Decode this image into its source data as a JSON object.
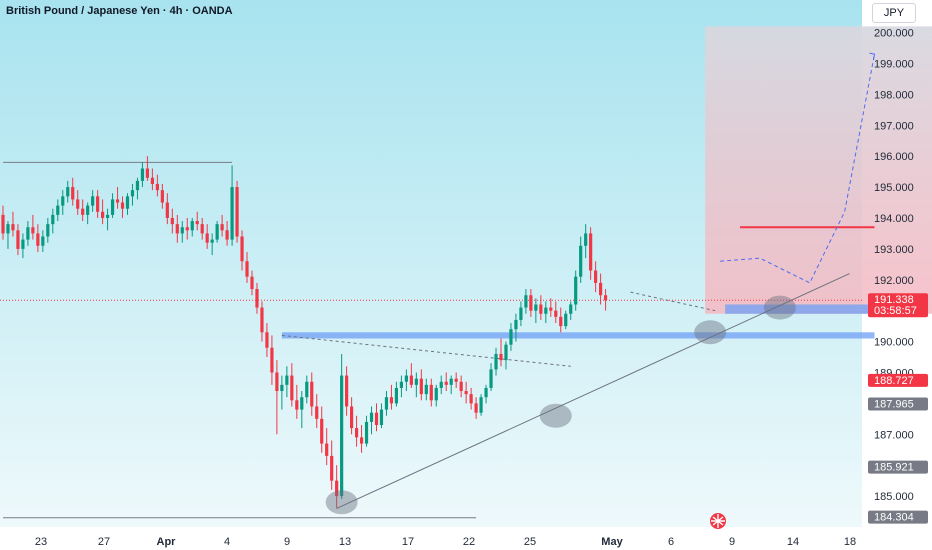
{
  "header": {
    "title": "British Pound / Japanese Yen · 4h · OANDA",
    "currency": "JPY"
  },
  "colors": {
    "bg_top": "#a8e3ef",
    "bg_bottom": "#e9f8fb",
    "bull": "#089981",
    "bear": "#f23645",
    "blue_zone": "#6e9ff5",
    "target_box": "#f4b6bf",
    "target_box_top": "#d7d7de"
  },
  "chart_data": {
    "type": "candlestick",
    "symbol": "GBP/JPY",
    "timeframe": "4h",
    "ylim": [
      184.0,
      200.6
    ],
    "y_ticks": [
      185.0,
      186.0,
      187.0,
      188.0,
      189.0,
      190.0,
      191.0,
      192.0,
      193.0,
      194.0,
      195.0,
      196.0,
      197.0,
      198.0,
      199.0,
      200.0
    ],
    "y_tick_labels": [
      "185.000",
      "",
      "187.000",
      "",
      "189.000",
      "190.000",
      "",
      "192.000",
      "193.000",
      "194.000",
      "195.000",
      "196.000",
      "197.000",
      "198.000",
      "199.000",
      "200.000"
    ],
    "x_labels": [
      "23",
      "27",
      "Apr",
      "4",
      "9",
      "13",
      "17",
      "22",
      "25",
      "May",
      "6",
      "9",
      "14",
      "18"
    ],
    "price_labels": [
      {
        "value": 191.338,
        "text": "191.338",
        "countdown": "03:58:57",
        "color": "#f23645"
      },
      {
        "value": 188.727,
        "text": "188.727",
        "color": "#f23645"
      },
      {
        "value": 187.965,
        "text": "187.965",
        "color": "#787b86"
      },
      {
        "value": 185.921,
        "text": "185.921",
        "color": "#787b86"
      },
      {
        "value": 184.304,
        "text": "184.304",
        "color": "#787b86"
      }
    ],
    "candles": [
      [
        194.1,
        194.4,
        193.3,
        193.5
      ],
      [
        193.5,
        193.9,
        193.0,
        193.8
      ],
      [
        193.8,
        194.2,
        193.4,
        193.6
      ],
      [
        193.6,
        193.8,
        192.8,
        193.0
      ],
      [
        193.0,
        193.5,
        192.7,
        193.3
      ],
      [
        193.3,
        193.9,
        193.1,
        193.7
      ],
      [
        193.7,
        194.1,
        193.3,
        193.5
      ],
      [
        193.5,
        193.8,
        192.9,
        193.1
      ],
      [
        193.1,
        193.6,
        192.9,
        193.4
      ],
      [
        193.4,
        194.0,
        193.2,
        193.8
      ],
      [
        193.8,
        194.3,
        193.5,
        194.1
      ],
      [
        194.1,
        194.6,
        193.9,
        194.4
      ],
      [
        194.4,
        194.9,
        194.1,
        194.7
      ],
      [
        194.7,
        195.2,
        194.5,
        195.0
      ],
      [
        195.0,
        195.3,
        194.4,
        194.6
      ],
      [
        194.6,
        194.9,
        194.1,
        194.3
      ],
      [
        194.3,
        194.6,
        193.9,
        194.1
      ],
      [
        194.1,
        194.5,
        193.8,
        194.4
      ],
      [
        194.4,
        194.9,
        194.2,
        194.7
      ],
      [
        194.7,
        194.9,
        194.0,
        194.2
      ],
      [
        194.2,
        194.6,
        193.8,
        194.0
      ],
      [
        194.0,
        194.3,
        193.6,
        194.1
      ],
      [
        194.1,
        194.8,
        194.0,
        194.6
      ],
      [
        194.6,
        195.0,
        194.3,
        194.5
      ],
      [
        194.5,
        194.7,
        194.0,
        194.3
      ],
      [
        194.3,
        194.8,
        194.1,
        194.7
      ],
      [
        194.7,
        195.1,
        194.4,
        194.9
      ],
      [
        194.9,
        195.3,
        194.6,
        195.2
      ],
      [
        195.2,
        195.8,
        195.0,
        195.6
      ],
      [
        195.6,
        196.0,
        195.2,
        195.3
      ],
      [
        195.3,
        195.6,
        194.9,
        195.1
      ],
      [
        195.1,
        195.4,
        194.7,
        194.9
      ],
      [
        194.9,
        195.1,
        194.3,
        194.5
      ],
      [
        194.5,
        194.8,
        193.8,
        194.0
      ],
      [
        194.0,
        194.3,
        193.5,
        193.8
      ],
      [
        193.8,
        194.1,
        193.2,
        193.5
      ],
      [
        193.5,
        193.9,
        193.2,
        193.7
      ],
      [
        193.7,
        194.0,
        193.3,
        193.6
      ],
      [
        193.6,
        194.0,
        193.4,
        193.9
      ],
      [
        193.9,
        194.2,
        193.6,
        193.8
      ],
      [
        193.8,
        194.0,
        193.3,
        193.5
      ],
      [
        193.5,
        193.8,
        193.0,
        193.2
      ],
      [
        193.2,
        193.5,
        192.8,
        193.3
      ],
      [
        193.3,
        193.9,
        193.2,
        193.8
      ],
      [
        193.8,
        194.1,
        193.4,
        193.6
      ],
      [
        193.6,
        193.9,
        193.1,
        193.3
      ],
      [
        193.3,
        195.7,
        193.1,
        195.0
      ],
      [
        195.0,
        195.2,
        193.2,
        193.4
      ],
      [
        193.4,
        193.6,
        192.3,
        192.6
      ],
      [
        192.6,
        192.9,
        191.9,
        192.1
      ],
      [
        192.1,
        192.3,
        191.5,
        191.7
      ],
      [
        191.7,
        191.9,
        190.9,
        191.1
      ],
      [
        191.1,
        191.3,
        190.0,
        190.3
      ],
      [
        190.3,
        190.6,
        189.5,
        189.8
      ],
      [
        189.8,
        190.2,
        188.6,
        189.0
      ],
      [
        189.0,
        189.4,
        187.0,
        188.4
      ],
      [
        188.4,
        188.9,
        187.8,
        188.6
      ],
      [
        188.6,
        189.2,
        188.2,
        188.9
      ],
      [
        188.9,
        189.3,
        187.9,
        188.1
      ],
      [
        188.1,
        188.6,
        187.5,
        187.8
      ],
      [
        187.8,
        188.4,
        187.2,
        188.2
      ],
      [
        188.2,
        188.9,
        188.0,
        188.7
      ],
      [
        188.7,
        189.0,
        187.6,
        187.9
      ],
      [
        187.9,
        188.3,
        187.2,
        187.5
      ],
      [
        187.5,
        187.9,
        186.4,
        186.7
      ],
      [
        186.7,
        187.2,
        186.0,
        186.3
      ],
      [
        186.3,
        186.8,
        185.2,
        185.5
      ],
      [
        185.5,
        186.0,
        184.6,
        185.0
      ],
      [
        185.0,
        189.6,
        184.9,
        188.9
      ],
      [
        188.9,
        189.2,
        187.6,
        187.9
      ],
      [
        187.9,
        188.2,
        187.0,
        187.2
      ],
      [
        187.2,
        187.6,
        186.6,
        186.9
      ],
      [
        186.9,
        187.3,
        186.4,
        186.7
      ],
      [
        186.7,
        187.6,
        186.6,
        187.4
      ],
      [
        187.4,
        187.9,
        187.0,
        187.7
      ],
      [
        187.7,
        188.0,
        187.1,
        187.3
      ],
      [
        187.3,
        188.0,
        187.2,
        187.8
      ],
      [
        187.8,
        188.4,
        187.6,
        188.2
      ],
      [
        188.2,
        188.6,
        187.8,
        188.0
      ],
      [
        188.0,
        188.7,
        187.9,
        188.5
      ],
      [
        188.5,
        188.9,
        188.2,
        188.7
      ],
      [
        188.7,
        189.1,
        188.4,
        188.9
      ],
      [
        188.9,
        189.3,
        188.5,
        188.6
      ],
      [
        188.6,
        189.0,
        188.2,
        188.8
      ],
      [
        188.8,
        189.1,
        188.1,
        188.3
      ],
      [
        188.3,
        188.8,
        188.1,
        188.6
      ],
      [
        188.6,
        188.8,
        187.9,
        188.1
      ],
      [
        188.1,
        188.6,
        187.9,
        188.5
      ],
      [
        188.5,
        188.9,
        188.3,
        188.7
      ],
      [
        188.7,
        189.0,
        188.4,
        188.6
      ],
      [
        188.6,
        188.9,
        188.3,
        188.8
      ],
      [
        188.8,
        189.0,
        188.5,
        188.7
      ],
      [
        188.7,
        188.9,
        188.2,
        188.4
      ],
      [
        188.4,
        188.7,
        188.0,
        188.3
      ],
      [
        188.3,
        188.5,
        187.8,
        188.0
      ],
      [
        188.0,
        188.2,
        187.5,
        187.7
      ],
      [
        187.7,
        188.3,
        187.6,
        188.2
      ],
      [
        188.2,
        188.6,
        188.0,
        188.5
      ],
      [
        188.5,
        189.3,
        188.4,
        189.1
      ],
      [
        189.1,
        189.8,
        188.9,
        189.6
      ],
      [
        189.6,
        190.1,
        189.2,
        189.4
      ],
      [
        189.4,
        190.0,
        189.1,
        189.9
      ],
      [
        189.9,
        190.6,
        189.7,
        190.4
      ],
      [
        190.4,
        190.9,
        190.0,
        190.7
      ],
      [
        190.7,
        191.3,
        190.5,
        191.1
      ],
      [
        191.1,
        191.7,
        190.9,
        191.5
      ],
      [
        191.5,
        191.7,
        190.8,
        191.0
      ],
      [
        191.0,
        191.4,
        190.6,
        191.2
      ],
      [
        191.2,
        191.5,
        190.7,
        190.9
      ],
      [
        190.9,
        191.3,
        190.6,
        191.1
      ],
      [
        191.1,
        191.4,
        190.8,
        191.0
      ],
      [
        191.0,
        191.3,
        190.6,
        190.8
      ],
      [
        190.8,
        191.1,
        190.3,
        190.5
      ],
      [
        190.5,
        191.0,
        190.4,
        190.9
      ],
      [
        190.9,
        191.3,
        190.7,
        191.2
      ],
      [
        191.2,
        192.3,
        191.0,
        192.1
      ],
      [
        192.1,
        193.4,
        191.9,
        193.1
      ],
      [
        193.1,
        193.8,
        192.7,
        193.5
      ],
      [
        193.5,
        193.7,
        192.0,
        192.3
      ],
      [
        192.3,
        192.6,
        191.6,
        191.9
      ],
      [
        191.9,
        192.2,
        191.2,
        191.5
      ],
      [
        191.5,
        191.7,
        191.0,
        191.34
      ]
    ],
    "shapes": [
      {
        "kind": "hline",
        "name": "prior-high-line",
        "x0": 0,
        "x1": 46,
        "y": 195.8,
        "color": "#787b86"
      },
      {
        "kind": "hline",
        "name": "low-base-line",
        "x0": 0,
        "x1": 95,
        "y": 184.3,
        "color": "#787b86"
      },
      {
        "kind": "zone",
        "name": "support-zone-lower",
        "x0": 56,
        "x1": 175,
        "y0": 190.1,
        "y1": 190.3
      },
      {
        "kind": "zone",
        "name": "support-zone-upper",
        "x0": 145,
        "x1": 175,
        "y0": 190.9,
        "y1": 191.2
      },
      {
        "kind": "hline",
        "name": "resistance-line",
        "x0": 148,
        "x1": 175,
        "y": 193.7,
        "color": "#f23645"
      },
      {
        "kind": "trend",
        "name": "ascending-trendline",
        "x0": 67,
        "y0": 184.6,
        "x1": 170,
        "y1": 192.2,
        "color": "#6b7280"
      },
      {
        "kind": "dashed",
        "name": "descending-channel-line",
        "x0": 56,
        "y0": 190.2,
        "x1": 114,
        "y1": 189.2,
        "color": "#6b7280"
      },
      {
        "kind": "dashed",
        "name": "flag-line",
        "x0": 126,
        "y0": 191.6,
        "x1": 143,
        "y1": 191.0,
        "color": "#6b7280"
      }
    ],
    "circles": [
      {
        "name": "touch-circle-1",
        "x": 68,
        "y": 184.8
      },
      {
        "name": "touch-circle-2",
        "x": 111,
        "y": 187.6
      },
      {
        "name": "touch-circle-3",
        "x": 142,
        "y": 190.3
      },
      {
        "name": "touch-circle-4",
        "x": 156,
        "y": 191.1
      }
    ],
    "target_box": {
      "x0": 141,
      "x1": 188,
      "y0": 190.9,
      "y1": 200.2
    },
    "projection": [
      [
        144,
        192.6
      ],
      [
        152,
        192.7
      ],
      [
        162,
        191.9
      ],
      [
        169,
        194.2
      ],
      [
        175,
        199.3
      ]
    ],
    "candle_x0": 0,
    "candle_dx": 4.98
  }
}
